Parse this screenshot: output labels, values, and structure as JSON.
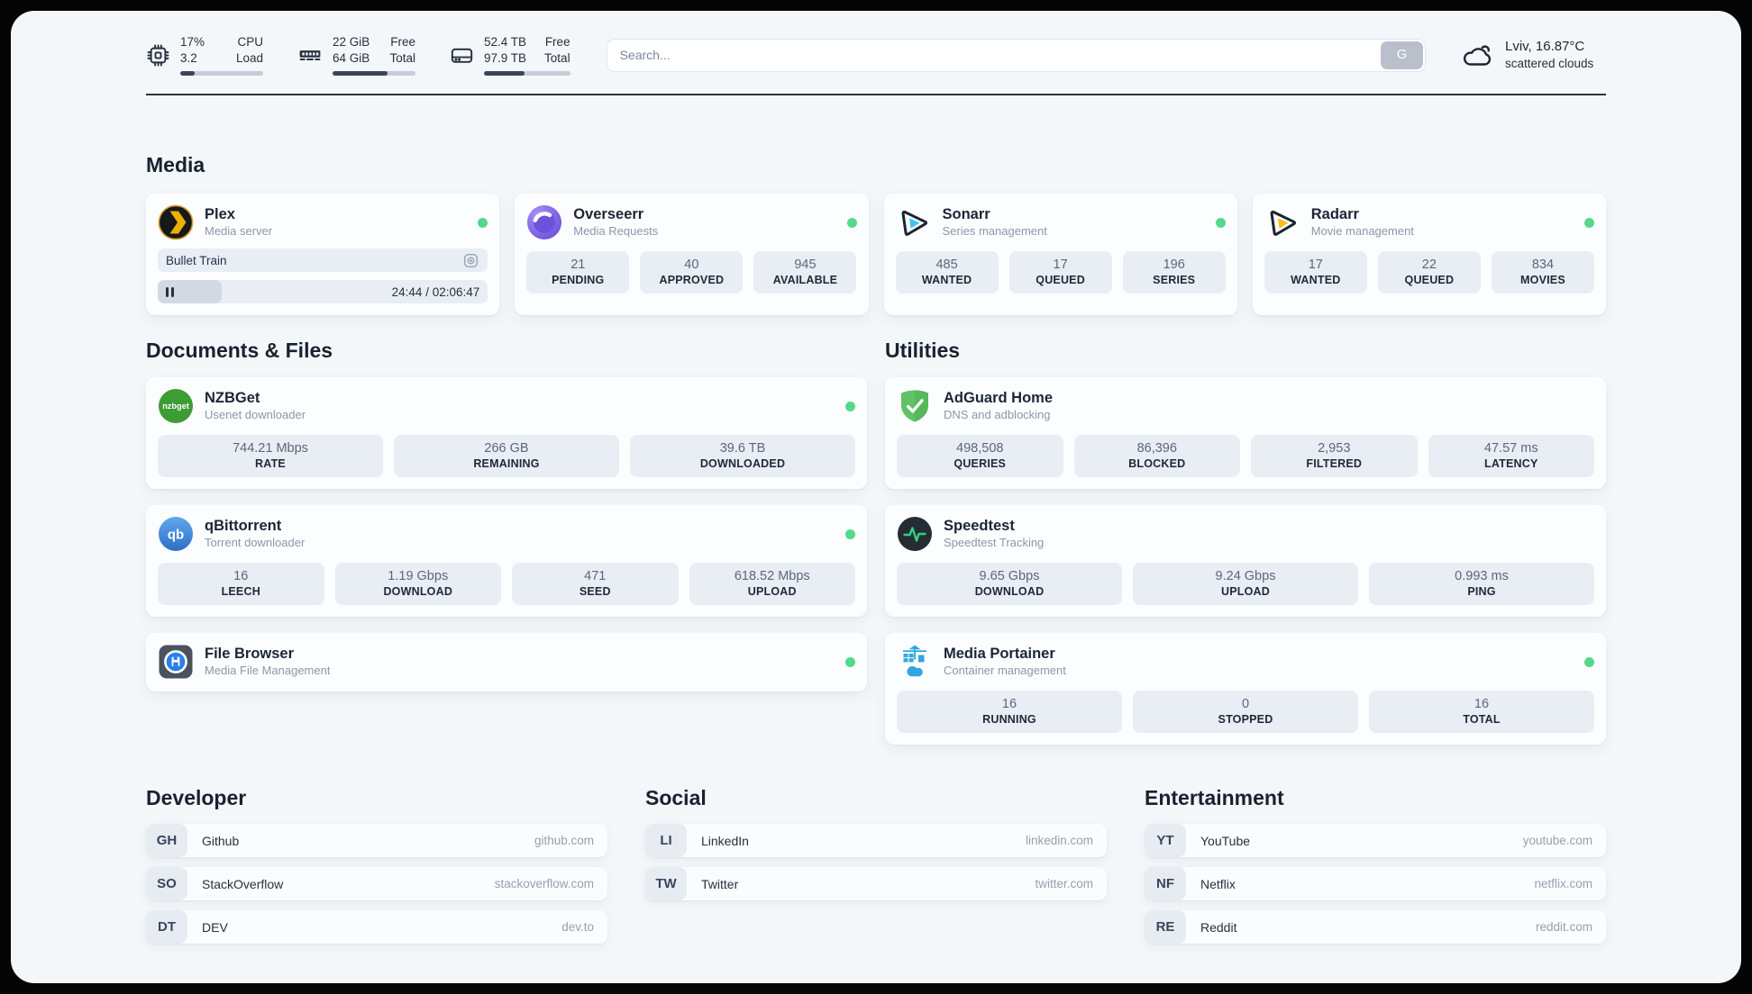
{
  "colors": {
    "status_online": "#54d98c",
    "page_background": "#f4f7fa",
    "card_background": "#fcfdfe",
    "stat_background": "#e9edf4",
    "plex_yellow": "#ebaf00",
    "sonarr_cyan": "#38c7f4",
    "radarr_orange": "#fcb81e",
    "nzbget_green": "#3d9c33",
    "adguard_green": "#63c168",
    "speedtest_green": "#2fd180",
    "portainer_blue": "#2ea7df"
  },
  "header": {
    "metrics": [
      {
        "icon": "cpu-icon",
        "values": [
          "17%",
          "3.2"
        ],
        "labels": [
          "CPU",
          "Load"
        ],
        "progress_percent": 17
      },
      {
        "icon": "ram-icon",
        "values": [
          "22 GiB",
          "64 GiB"
        ],
        "labels": [
          "Free",
          "Total"
        ],
        "progress_percent": 66
      },
      {
        "icon": "disk-icon",
        "values": [
          "52.4 TB",
          "97.9 TB"
        ],
        "labels": [
          "Free",
          "Total"
        ],
        "progress_percent": 47
      }
    ],
    "search": {
      "placeholder": "Search...",
      "button_label": "G"
    },
    "weather": {
      "icon": "cloud-icon",
      "location": "Lviv, 16.87°C",
      "condition": "scattered clouds"
    }
  },
  "sections": {
    "media": {
      "title": "Media",
      "plex": {
        "name": "Plex",
        "description": "Media server",
        "status": "online",
        "now_playing": "Bullet Train",
        "time": "24:44 / 02:06:47",
        "progress_percent": 19.5
      },
      "overseerr": {
        "name": "Overseerr",
        "description": "Media Requests",
        "status": "online",
        "stats": [
          {
            "value": "21",
            "label": "PENDING"
          },
          {
            "value": "40",
            "label": "APPROVED"
          },
          {
            "value": "945",
            "label": "AVAILABLE"
          }
        ]
      },
      "sonarr": {
        "name": "Sonarr",
        "description": "Series management",
        "status": "online",
        "stats": [
          {
            "value": "485",
            "label": "WANTED"
          },
          {
            "value": "17",
            "label": "QUEUED"
          },
          {
            "value": "196",
            "label": "SERIES"
          }
        ]
      },
      "radarr": {
        "name": "Radarr",
        "description": "Movie management",
        "status": "online",
        "stats": [
          {
            "value": "17",
            "label": "WANTED"
          },
          {
            "value": "22",
            "label": "QUEUED"
          },
          {
            "value": "834",
            "label": "MOVIES"
          }
        ]
      }
    },
    "documents": {
      "title": "Documents & Files",
      "nzbget": {
        "name": "NZBGet",
        "description": "Usenet downloader",
        "status": "online",
        "stats": [
          {
            "value": "744.21 Mbps",
            "label": "RATE"
          },
          {
            "value": "266 GB",
            "label": "REMAINING"
          },
          {
            "value": "39.6 TB",
            "label": "DOWNLOADED"
          }
        ]
      },
      "qbittorrent": {
        "name": "qBittorrent",
        "description": "Torrent downloader",
        "status": "online",
        "stats": [
          {
            "value": "16",
            "label": "LEECH"
          },
          {
            "value": "1.19 Gbps",
            "label": "DOWNLOAD"
          },
          {
            "value": "471",
            "label": "SEED"
          },
          {
            "value": "618.52 Mbps",
            "label": "UPLOAD"
          }
        ]
      },
      "filebrowser": {
        "name": "File Browser",
        "description": "Media File Management",
        "status": "online"
      }
    },
    "utilities": {
      "title": "Utilities",
      "adguard": {
        "name": "AdGuard Home",
        "description": "DNS and adblocking",
        "stats": [
          {
            "value": "498,508",
            "label": "QUERIES"
          },
          {
            "value": "86,396",
            "label": "BLOCKED"
          },
          {
            "value": "2,953",
            "label": "FILTERED"
          },
          {
            "value": "47.57 ms",
            "label": "LATENCY"
          }
        ]
      },
      "speedtest": {
        "name": "Speedtest",
        "description": "Speedtest Tracking",
        "stats": [
          {
            "value": "9.65 Gbps",
            "label": "DOWNLOAD"
          },
          {
            "value": "9.24 Gbps",
            "label": "UPLOAD"
          },
          {
            "value": "0.993 ms",
            "label": "PING"
          }
        ]
      },
      "portainer": {
        "name": "Media Portainer",
        "description": "Container management",
        "status": "online",
        "stats": [
          {
            "value": "16",
            "label": "RUNNING"
          },
          {
            "value": "0",
            "label": "STOPPED"
          },
          {
            "value": "16",
            "label": "TOTAL"
          }
        ]
      }
    },
    "bookmarks": [
      {
        "title": "Developer",
        "links": [
          {
            "abbr": "GH",
            "name": "Github",
            "url": "github.com"
          },
          {
            "abbr": "SO",
            "name": "StackOverflow",
            "url": "stackoverflow.com"
          },
          {
            "abbr": "DT",
            "name": "DEV",
            "url": "dev.to"
          }
        ]
      },
      {
        "title": "Social",
        "links": [
          {
            "abbr": "LI",
            "name": "LinkedIn",
            "url": "linkedin.com"
          },
          {
            "abbr": "TW",
            "name": "Twitter",
            "url": "twitter.com"
          }
        ]
      },
      {
        "title": "Entertainment",
        "links": [
          {
            "abbr": "YT",
            "name": "YouTube",
            "url": "youtube.com"
          },
          {
            "abbr": "NF",
            "name": "Netflix",
            "url": "netflix.com"
          },
          {
            "abbr": "RE",
            "name": "Reddit",
            "url": "reddit.com"
          }
        ]
      }
    ]
  }
}
